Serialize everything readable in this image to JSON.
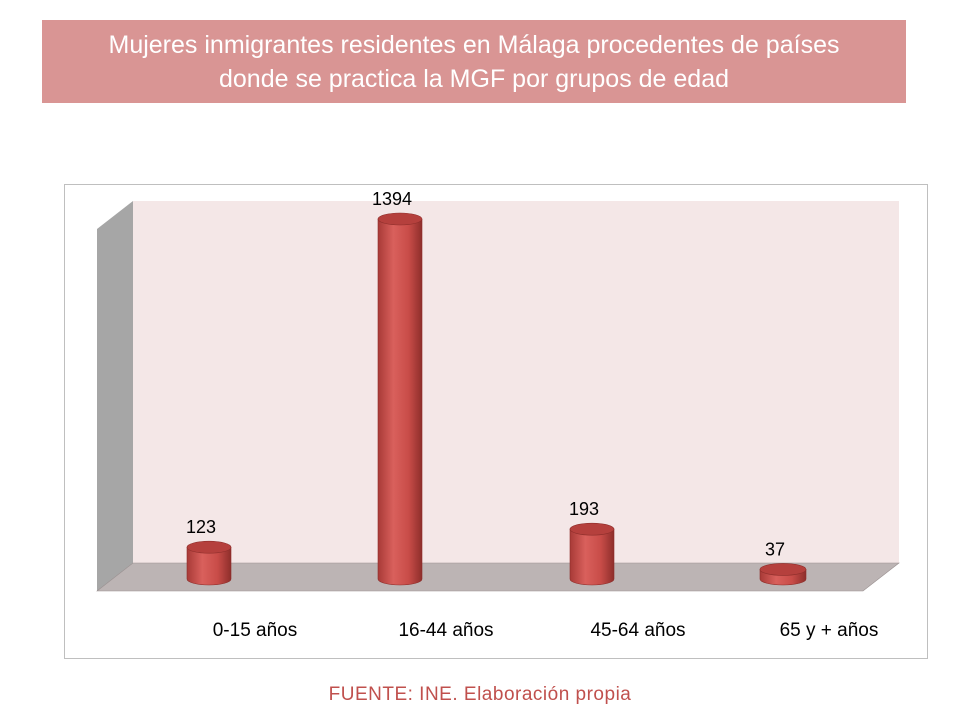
{
  "title": "Mujeres inmigrantes residentes en Málaga procedentes de países donde se practica la MGF por grupos de edad",
  "source": "FUENTE: INE. Elaboración propia",
  "colors": {
    "title_bg": "#d99594",
    "plot_wall": "#f4e7e7",
    "side_wall": "#a6a6a6",
    "floor": "#bcb4b4",
    "bar": "#c0504d",
    "source_text": "#c0504d"
  },
  "chart_data": {
    "type": "bar",
    "style": "3d-cylinder",
    "categories": [
      "0-15 años",
      "16-44 años",
      "45-64 años",
      "65 y + años"
    ],
    "values": [
      123,
      1394,
      193,
      37
    ],
    "ylim": [
      0,
      1394
    ],
    "grid": false,
    "legend": "none"
  }
}
